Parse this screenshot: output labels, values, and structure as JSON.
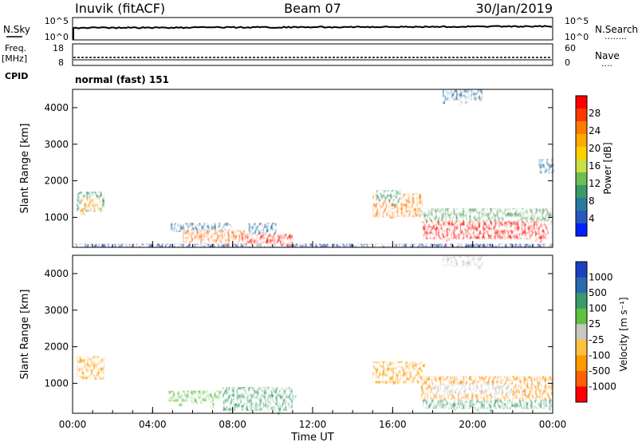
{
  "header": {
    "station": "Inuvik (fitACF)",
    "beam": "Beam 07",
    "date": "30/Jan/2019"
  },
  "nsky_panel": {
    "left_label": "N.Sky",
    "left_ticks": [
      "10^5",
      "10^0"
    ],
    "right_ticks": [
      "10^5",
      "10^0"
    ],
    "right_label": "N.Search",
    "right_marker": "........"
  },
  "freq_panel": {
    "left_label_top": "Freq.",
    "left_label_bottom": "[MHz]",
    "left_ticks": [
      "18",
      "8"
    ],
    "right_ticks": [
      "60",
      "0"
    ],
    "right_label": "Nave",
    "right_marker": "....",
    "cpid_label": "CPID",
    "cpid_value": "normal (fast) 151"
  },
  "chart_data": [
    {
      "type": "heatmap",
      "name": "power",
      "ylabel": "Slant Range [km]",
      "yticks": [
        "4000",
        "3000",
        "2000",
        "1000"
      ],
      "ylim": [
        180,
        4500
      ],
      "xlim": [
        "00:00",
        "24:00"
      ],
      "colorbar": {
        "label": "Power [dB]",
        "tick_labels": [
          "28",
          "24",
          "20",
          "16",
          "12",
          "8",
          "4"
        ],
        "colors": [
          "#ff0000",
          "#ff3a00",
          "#ff7a00",
          "#ffaa00",
          "#ffd000",
          "#c8e040",
          "#6cc050",
          "#3a9a6a",
          "#2a7aa0",
          "#2858c0",
          "#0020ff"
        ]
      },
      "regions": [
        {
          "t0": 0.2,
          "t1": 1.6,
          "r0": 1150,
          "r1": 1700,
          "color": "#2a8a6a"
        },
        {
          "t0": 0.4,
          "t1": 1.5,
          "r0": 1200,
          "r1": 1550,
          "color": "#ff9a00"
        },
        {
          "t0": 4.9,
          "t1": 7.8,
          "r0": 600,
          "r1": 850,
          "color": "#2a70a0"
        },
        {
          "t0": 5.5,
          "t1": 8.6,
          "r0": 300,
          "r1": 650,
          "color": "#ff6a00"
        },
        {
          "t0": 8.8,
          "t1": 10.2,
          "r0": 550,
          "r1": 850,
          "color": "#2a70a0"
        },
        {
          "t0": 8.3,
          "t1": 11.0,
          "r0": 250,
          "r1": 550,
          "color": "#ff2000"
        },
        {
          "t0": 15.0,
          "t1": 17.5,
          "r0": 1000,
          "r1": 1650,
          "color": "#ff7a00"
        },
        {
          "t0": 15.2,
          "t1": 16.4,
          "r0": 1450,
          "r1": 1750,
          "color": "#3a9a6a"
        },
        {
          "t0": 17.4,
          "t1": 24.0,
          "r0": 800,
          "r1": 1250,
          "color": "#5aa060"
        },
        {
          "t0": 17.5,
          "t1": 23.8,
          "r0": 400,
          "r1": 900,
          "color": "#ff1000"
        },
        {
          "t0": 18.5,
          "t1": 20.5,
          "r0": 4200,
          "r1": 4500,
          "color": "#2a70a0"
        },
        {
          "t0": 23.3,
          "t1": 24.0,
          "r0": 2200,
          "r1": 2600,
          "color": "#2a70a0"
        }
      ],
      "ground_band": {
        "t0": 0.0,
        "t1": 24.0,
        "r0": 180,
        "r1": 280,
        "color": "#2a4aa0"
      }
    },
    {
      "type": "heatmap",
      "name": "velocity",
      "ylabel": "Slant Range [km]",
      "yticks": [
        "4000",
        "3000",
        "2000",
        "1000"
      ],
      "ylim": [
        180,
        4500
      ],
      "xlim": [
        "00:00",
        "24:00"
      ],
      "xticks": [
        "00:00",
        "04:00",
        "08:00",
        "12:00",
        "16:00",
        "20:00",
        "00:00"
      ],
      "xlabel": "Time UT",
      "colorbar": {
        "label": "Velocity [m s⁻¹]",
        "tick_labels": [
          "1000",
          "500",
          "100",
          "25",
          "-25",
          "-100",
          "-500",
          "-1000"
        ],
        "colors": [
          "#1a40c0",
          "#2a6ab0",
          "#3a9a6a",
          "#60c040",
          "#c8c8c0",
          "#ffc040",
          "#ff9a00",
          "#ff6000",
          "#ff0000"
        ]
      },
      "regions": [
        {
          "t0": 0.2,
          "t1": 1.6,
          "r0": 1100,
          "r1": 1750,
          "color": "#ff9a00"
        },
        {
          "t0": 4.8,
          "t1": 7.5,
          "r0": 500,
          "r1": 800,
          "color": "#60c040"
        },
        {
          "t0": 7.5,
          "t1": 11.0,
          "r0": 250,
          "r1": 900,
          "color": "#3a9a6a"
        },
        {
          "t0": 15.0,
          "t1": 17.5,
          "r0": 1000,
          "r1": 1600,
          "color": "#ff9a00"
        },
        {
          "t0": 17.4,
          "t1": 24.0,
          "r0": 500,
          "r1": 1200,
          "color": "#ff8a00"
        },
        {
          "t0": 18.0,
          "t1": 22.0,
          "r0": 700,
          "r1": 1000,
          "color": "#c8c8c0"
        },
        {
          "t0": 17.5,
          "t1": 24.0,
          "r0": 300,
          "r1": 550,
          "color": "#3a9a6a"
        },
        {
          "t0": 18.5,
          "t1": 20.5,
          "r0": 4200,
          "r1": 4500,
          "color": "#c8c8c0"
        }
      ]
    }
  ]
}
